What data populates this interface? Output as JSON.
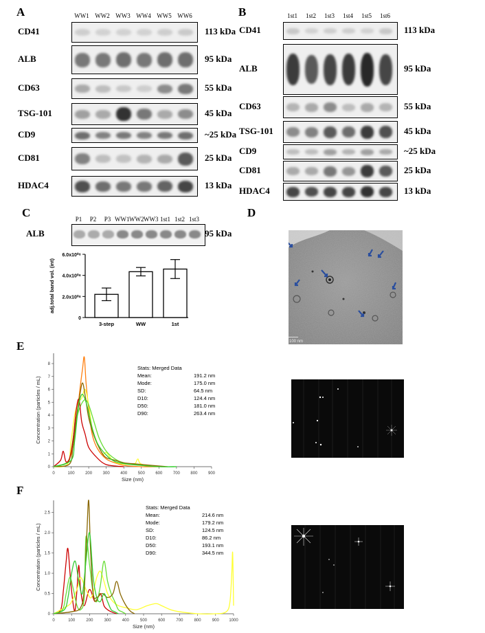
{
  "panel_labels": {
    "A": "A",
    "B": "B",
    "C": "C",
    "D": "D",
    "E": "E",
    "F": "F"
  },
  "panelA": {
    "lanes": [
      "WW1",
      "WW2",
      "WW3",
      "WW4",
      "WW5",
      "WW6"
    ],
    "rows": [
      {
        "marker": "CD41",
        "size": "113 kDa"
      },
      {
        "marker": "ALB",
        "size": "95 kDa"
      },
      {
        "marker": "CD63",
        "size": "55 kDa"
      },
      {
        "marker": "TSG-101",
        "size": "45 kDa"
      },
      {
        "marker": "CD9",
        "size": "~25 kDa"
      },
      {
        "marker": "CD81",
        "size": "25 kDa"
      },
      {
        "marker": "HDAC4",
        "size": "13 kDa"
      }
    ]
  },
  "panelB": {
    "lanes": [
      "1st1",
      "1st2",
      "1st3",
      "1st4",
      "1st5",
      "1st6"
    ],
    "rows": [
      {
        "marker": "CD41",
        "size": "113 kDa"
      },
      {
        "marker": "ALB",
        "size": "95 kDa"
      },
      {
        "marker": "CD63",
        "size": "55 kDa"
      },
      {
        "marker": "TSG-101",
        "size": "45 kDa"
      },
      {
        "marker": "CD9",
        "size": "~25 kDa"
      },
      {
        "marker": "CD81",
        "size": "25 kDa"
      },
      {
        "marker": "HDAC4",
        "size": "13 kDa"
      }
    ]
  },
  "panelC": {
    "lanes": [
      "P1",
      "P2",
      "P3",
      "WW1",
      "WW2",
      "WW3",
      "1st1",
      "1st2",
      "1st3"
    ],
    "marker": "ALB",
    "size": "95 kDa"
  },
  "panelD": {
    "scale_label": "100 nm"
  },
  "chart_data": [
    {
      "type": "bar",
      "categories": [
        "3-step",
        "WW",
        "1st"
      ],
      "values": [
        220000000.0,
        435000000.0,
        460000000.0
      ],
      "error": [
        60000000.0,
        40000000.0,
        90000000.0
      ],
      "ylabel": "adj.total band vol. (int)",
      "yticks": [
        "0",
        "2.0x10⁰⁸",
        "4.0x10⁰⁸",
        "6.0x10⁰⁸"
      ],
      "ylim": [
        0,
        600000000.0
      ]
    },
    {
      "type": "line",
      "xlabel": "Size (nm)",
      "ylabel": "Concentration (particles / mL)",
      "xticks": [
        "0",
        "100",
        "200",
        "300",
        "400",
        "500",
        "600",
        "700",
        "800",
        "900"
      ],
      "yticks": [
        "0",
        "1",
        "2",
        "3",
        "4",
        "5",
        "6",
        "7",
        "8"
      ],
      "xlim": [
        0,
        900
      ],
      "ylim": [
        0,
        8.8
      ],
      "series": [
        {
          "color": "#ff7f0e",
          "x": [
            0,
            60,
            90,
            110,
            130,
            150,
            165,
            175,
            185,
            200,
            220,
            250,
            300,
            350,
            400,
            500,
            600
          ],
          "y": [
            0,
            0.2,
            0.6,
            1.5,
            3.5,
            6.0,
            7.6,
            8.5,
            6.5,
            4.5,
            2.5,
            1.4,
            0.6,
            0.3,
            0.1,
            0,
            0
          ]
        },
        {
          "color": "#ffff33",
          "x": [
            0,
            80,
            100,
            120,
            140,
            160,
            180,
            200,
            220,
            250,
            280,
            300,
            330,
            360,
            400,
            460,
            480,
            500,
            600
          ],
          "y": [
            0,
            0.2,
            2.0,
            4.0,
            5.0,
            5.3,
            6.0,
            4.8,
            3.0,
            1.8,
            1.0,
            1.1,
            0.6,
            0.3,
            0.2,
            0.2,
            0.6,
            0.2,
            0
          ]
        },
        {
          "color": "#66dd33",
          "x": [
            0,
            80,
            100,
            120,
            140,
            160,
            180,
            200,
            230,
            260,
            300,
            350,
            400,
            450,
            500,
            600,
            700
          ],
          "y": [
            0,
            0.3,
            1.2,
            3.0,
            4.2,
            4.9,
            5.2,
            4.8,
            3.5,
            2.2,
            1.2,
            0.6,
            0.3,
            0.2,
            0.1,
            0,
            0
          ]
        },
        {
          "color": "#cc0000",
          "x": [
            0,
            40,
            55,
            70,
            90,
            110,
            130,
            145,
            160,
            180,
            200,
            240,
            280,
            320,
            400
          ],
          "y": [
            0,
            0.5,
            1.2,
            0.4,
            0.6,
            2.0,
            4.5,
            5.2,
            3.5,
            2.5,
            1.5,
            0.8,
            0.3,
            0.1,
            0
          ]
        },
        {
          "color": "#886600",
          "x": [
            0,
            90,
            110,
            130,
            150,
            165,
            180,
            200,
            230,
            270,
            300,
            350,
            400,
            480,
            560,
            650
          ],
          "y": [
            0,
            0.2,
            1.5,
            3.8,
            5.6,
            6.5,
            5.5,
            3.8,
            2.4,
            1.2,
            0.7,
            0.5,
            0.3,
            0.2,
            0.1,
            0
          ]
        },
        {
          "color": "#33cc33",
          "x": [
            0,
            100,
            120,
            140,
            160,
            180,
            200,
            220,
            250,
            300,
            350,
            420,
            500,
            600,
            700
          ],
          "y": [
            0,
            0.5,
            2.0,
            4.5,
            5.6,
            5.2,
            4.2,
            3.0,
            1.8,
            0.9,
            0.4,
            0.2,
            0.1,
            0,
            0
          ]
        }
      ]
    },
    {
      "type": "line",
      "xlabel": "Size (nm)",
      "ylabel": "Concentration (particles / mL)",
      "xticks": [
        "0",
        "100",
        "200",
        "300",
        "400",
        "500",
        "600",
        "700",
        "800",
        "900",
        "1000"
      ],
      "yticks": [
        "0",
        "0.5",
        "1.0",
        "1.5",
        "2.0",
        "2.5"
      ],
      "xlim": [
        0,
        1000
      ],
      "ylim": [
        0,
        2.8
      ],
      "series": [
        {
          "color": "#cc0000",
          "x": [
            0,
            40,
            55,
            70,
            80,
            95,
            110,
            120,
            130,
            140,
            150,
            170,
            200,
            230,
            260,
            280,
            300,
            320,
            350
          ],
          "y": [
            0,
            0.1,
            0.6,
            1.3,
            1.6,
            0.8,
            0.2,
            0.1,
            0.6,
            1.2,
            0.6,
            0.2,
            0.6,
            0.3,
            0.5,
            0.2,
            0.1,
            0.05,
            0
          ]
        },
        {
          "color": "#ffff33",
          "x": [
            0,
            80,
            100,
            130,
            150,
            180,
            210,
            240,
            260,
            280,
            300,
            330,
            360,
            400,
            460,
            520,
            570,
            600,
            650,
            700,
            800,
            900,
            960,
            980,
            990,
            995,
            1000
          ],
          "y": [
            0,
            0.2,
            0.3,
            0.6,
            0.9,
            0.6,
            0.4,
            0.9,
            1.05,
            0.8,
            0.5,
            0.3,
            0.2,
            0.15,
            0.1,
            0.2,
            0.25,
            0.2,
            0.1,
            0.05,
            0,
            0,
            0.05,
            0.3,
            1.0,
            1.5,
            0.2
          ]
        },
        {
          "color": "#66dd33",
          "x": [
            0,
            50,
            70,
            90,
            110,
            130,
            150,
            170,
            180,
            200,
            220,
            240,
            260,
            280,
            300,
            320,
            340,
            360,
            380,
            400
          ],
          "y": [
            0,
            0.1,
            0.5,
            0.9,
            0.6,
            0.2,
            0.1,
            0.4,
            1.9,
            1.2,
            0.5,
            0.3,
            0.7,
            1.3,
            0.8,
            0.5,
            0.3,
            0.1,
            0.05,
            0
          ]
        },
        {
          "color": "#886600",
          "x": [
            0,
            100,
            150,
            170,
            185,
            195,
            205,
            220,
            240,
            270,
            300,
            330,
            350,
            370,
            390,
            410,
            430,
            450
          ],
          "y": [
            0,
            0.05,
            0.15,
            0.6,
            2.0,
            2.8,
            1.6,
            0.5,
            0.4,
            0.5,
            0.4,
            0.5,
            0.8,
            0.5,
            0.3,
            0.15,
            0.05,
            0
          ]
        },
        {
          "color": "#33cc33",
          "x": [
            0,
            60,
            80,
            100,
            120,
            140,
            160,
            180,
            200,
            220,
            240,
            260,
            280,
            300,
            320,
            340,
            360
          ],
          "y": [
            0,
            0.1,
            0.4,
            1.0,
            1.3,
            0.8,
            0.5,
            1.3,
            2.0,
            0.9,
            0.4,
            0.3,
            0.5,
            0.3,
            0.1,
            0.05,
            0
          ]
        }
      ]
    }
  ],
  "statsE": {
    "title": "Stats: Merged Data",
    "rows": [
      {
        "k": "Mean:",
        "v": "191.2 nm"
      },
      {
        "k": "Mode:",
        "v": "175.0 nm"
      },
      {
        "k": "SD:",
        "v": "64.5 nm"
      },
      {
        "k": "D10:",
        "v": "124.4 nm"
      },
      {
        "k": "D50:",
        "v": "181.0 nm"
      },
      {
        "k": "D90:",
        "v": "263.4 nm"
      }
    ]
  },
  "statsF": {
    "title": "Stats: Merged Data",
    "rows": [
      {
        "k": "Mean:",
        "v": "214.6 nm"
      },
      {
        "k": "Mode:",
        "v": "179.2 nm"
      },
      {
        "k": "SD:",
        "v": "124.5 nm"
      },
      {
        "k": "D10:",
        "v": "86.2 nm"
      },
      {
        "k": "D50:",
        "v": "193.1 nm"
      },
      {
        "k": "D90:",
        "v": "344.5 nm"
      }
    ]
  }
}
